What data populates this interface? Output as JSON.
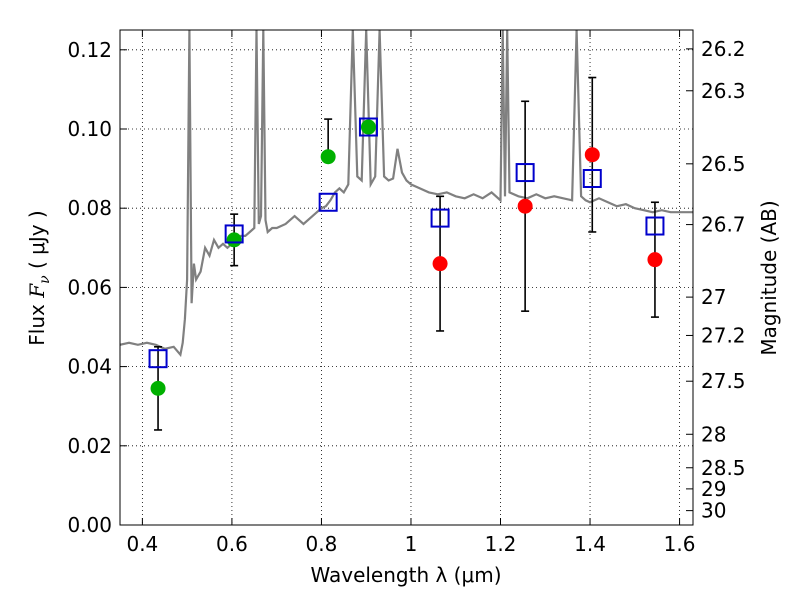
{
  "chart_data": {
    "type": "scatter",
    "xlabel": "Wavelength  λ (μm)",
    "ylabel_left_prefix": "Flux  ",
    "ylabel_left_symbol": "F",
    "ylabel_left_sub": "ν",
    "ylabel_left_suffix": "  ( μJy )",
    "ylabel_right": "Magnitude (AB)",
    "xlim": [
      0.35,
      1.63
    ],
    "ylim": [
      0.0,
      0.125
    ],
    "x_ticks": [
      0.4,
      0.6,
      0.8,
      1.0,
      1.2,
      1.4,
      1.6
    ],
    "x_tick_labels": [
      "0.4",
      "0.6",
      "0.8",
      "1",
      "1.2",
      "1.4",
      "1.6"
    ],
    "y_ticks": [
      0.0,
      0.02,
      0.04,
      0.06,
      0.08,
      0.1,
      0.12
    ],
    "y_tick_labels": [
      "0.00",
      "0.02",
      "0.04",
      "0.06",
      "0.08",
      "0.10",
      "0.12"
    ],
    "right_axis": {
      "labels": [
        "26.2",
        "26.3",
        "26.5",
        "26.7",
        "27",
        "27.2",
        "27.5",
        "28",
        "28.5",
        "29",
        "30"
      ],
      "values": [
        26.2,
        26.3,
        26.5,
        26.7,
        27.0,
        27.2,
        27.5,
        28.0,
        28.5,
        29.0,
        30.0
      ],
      "zero_point_uJy": 3631000000
    },
    "grid": true,
    "colors": {
      "spectrum": "#808080",
      "model": "#0000cc",
      "optical": "#00b000",
      "nir": "#ff0000",
      "errorbar": "#000000"
    },
    "spectrum": {
      "x": [
        0.35,
        0.37,
        0.39,
        0.41,
        0.43,
        0.45,
        0.47,
        0.485,
        0.49,
        0.495,
        0.5,
        0.505,
        0.51,
        0.515,
        0.52,
        0.53,
        0.54,
        0.55,
        0.56,
        0.57,
        0.58,
        0.59,
        0.6,
        0.61,
        0.62,
        0.63,
        0.64,
        0.65,
        0.655,
        0.66,
        0.665,
        0.67,
        0.675,
        0.68,
        0.69,
        0.7,
        0.72,
        0.74,
        0.76,
        0.78,
        0.8,
        0.81,
        0.82,
        0.83,
        0.84,
        0.85,
        0.86,
        0.87,
        0.88,
        0.89,
        0.9,
        0.91,
        0.92,
        0.93,
        0.94,
        0.95,
        0.96,
        0.97,
        0.98,
        0.99,
        1.0,
        1.02,
        1.04,
        1.06,
        1.08,
        1.1,
        1.12,
        1.14,
        1.16,
        1.18,
        1.2,
        1.205,
        1.21,
        1.215,
        1.22,
        1.24,
        1.26,
        1.28,
        1.3,
        1.32,
        1.34,
        1.36,
        1.37,
        1.38,
        1.39,
        1.4,
        1.42,
        1.44,
        1.46,
        1.48,
        1.5,
        1.52,
        1.54,
        1.56,
        1.58,
        1.6,
        1.63
      ],
      "y": [
        0.0455,
        0.046,
        0.0455,
        0.046,
        0.0455,
        0.0445,
        0.045,
        0.043,
        0.046,
        0.052,
        0.062,
        0.125,
        0.056,
        0.066,
        0.062,
        0.064,
        0.07,
        0.068,
        0.072,
        0.07,
        0.071,
        0.07,
        0.071,
        0.072,
        0.073,
        0.073,
        0.074,
        0.075,
        0.125,
        0.076,
        0.078,
        0.125,
        0.077,
        0.074,
        0.075,
        0.075,
        0.076,
        0.078,
        0.076,
        0.078,
        0.08,
        0.0805,
        0.082,
        0.084,
        0.085,
        0.084,
        0.086,
        0.125,
        0.088,
        0.087,
        0.125,
        0.086,
        0.088,
        0.125,
        0.088,
        0.087,
        0.0875,
        0.095,
        0.089,
        0.087,
        0.086,
        0.085,
        0.084,
        0.0835,
        0.084,
        0.083,
        0.0825,
        0.0835,
        0.0825,
        0.084,
        0.082,
        0.125,
        0.083,
        0.125,
        0.084,
        0.083,
        0.0825,
        0.0835,
        0.0825,
        0.083,
        0.0825,
        0.082,
        0.125,
        0.083,
        0.082,
        0.0815,
        0.0825,
        0.0815,
        0.0805,
        0.081,
        0.08,
        0.0795,
        0.079,
        0.0795,
        0.079,
        0.079,
        0.079
      ]
    },
    "model_points": {
      "x": [
        0.435,
        0.605,
        0.815,
        0.905,
        1.065,
        1.255,
        1.405,
        1.545
      ],
      "y": [
        0.042,
        0.0735,
        0.0815,
        0.1005,
        0.0775,
        0.089,
        0.0875,
        0.0755
      ]
    },
    "observed_optical": {
      "x": [
        0.435,
        0.605,
        0.815,
        0.905
      ],
      "y": [
        0.0345,
        0.072,
        0.093,
        0.1005
      ],
      "yerr_low": [
        0.0105,
        0.0065,
        null,
        null
      ],
      "yerr_high": [
        0.0105,
        0.0065,
        0.0095,
        null
      ]
    },
    "observed_nir": {
      "x": [
        1.065,
        1.255,
        1.405,
        1.545
      ],
      "y": [
        0.066,
        0.0805,
        0.0935,
        0.067
      ],
      "yerr_low": [
        0.017,
        0.0265,
        0.0195,
        0.0145
      ],
      "yerr_high": [
        0.017,
        0.0265,
        0.0195,
        0.0145
      ]
    }
  }
}
